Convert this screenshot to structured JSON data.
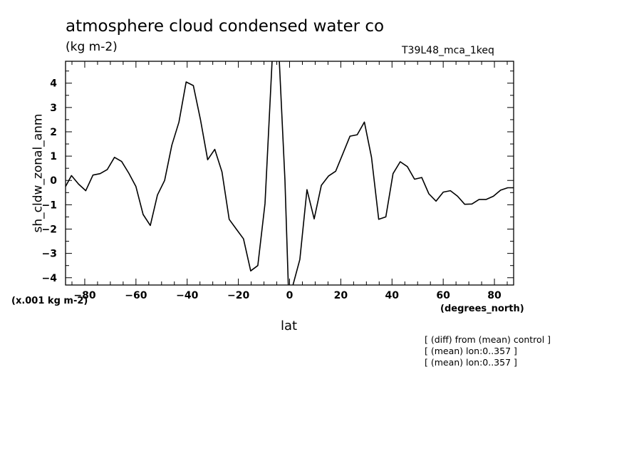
{
  "chart_data": {
    "type": "line",
    "title": "atmosphere cloud condensed water co",
    "units": "(kg m-2)",
    "run_id": "T39L48_mca_1keq",
    "xlabel": "lat",
    "x_units": "(degrees_north)",
    "ylabel": "sh_cldw_zonal_anm",
    "y_scale_note": "(x.001 kg m-2)",
    "xlim": [
      -87.5,
      87.5
    ],
    "ylim": [
      -4.3,
      4.9
    ],
    "x_ticks": [
      -80,
      -60,
      -40,
      -20,
      0,
      20,
      40,
      60,
      80
    ],
    "y_ticks": [
      -4,
      -3,
      -2,
      -1,
      0,
      1,
      2,
      3,
      4
    ],
    "grid": false,
    "series": [
      {
        "name": "sh_cldw_zonal_anm",
        "x": [
          -87.5,
          -85.2,
          -82.4,
          -79.6,
          -76.8,
          -74.0,
          -71.2,
          -68.4,
          -65.6,
          -62.8,
          -60.0,
          -57.2,
          -54.4,
          -51.6,
          -48.8,
          -46.0,
          -43.2,
          -40.4,
          -37.6,
          -34.8,
          -32.0,
          -29.2,
          -26.4,
          -23.6,
          -20.8,
          -18.0,
          -15.2,
          -12.4,
          -9.6,
          -6.8,
          -4.0,
          -1.8,
          -0.5,
          1.2,
          4.0,
          6.8,
          9.6,
          12.4,
          15.2,
          18.0,
          20.8,
          23.6,
          26.4,
          29.2,
          32.0,
          34.8,
          37.6,
          40.4,
          43.2,
          46.0,
          48.8,
          51.6,
          54.4,
          57.2,
          60.0,
          62.8,
          65.6,
          68.4,
          71.2,
          74.0,
          76.8,
          79.6,
          82.4,
          85.2,
          87.5
        ],
        "values": [
          -0.25,
          0.2,
          -0.15,
          -0.42,
          0.22,
          0.28,
          0.45,
          0.95,
          0.78,
          0.3,
          -0.25,
          -1.4,
          -1.85,
          -0.6,
          0.0,
          1.45,
          2.4,
          4.05,
          3.9,
          2.5,
          0.85,
          1.28,
          0.35,
          -1.6,
          -2.0,
          -2.4,
          -3.72,
          -3.5,
          -0.95,
          5.0,
          4.9,
          0.0,
          -4.3,
          -4.35,
          -3.25,
          -0.38,
          -1.58,
          -0.2,
          0.18,
          0.38,
          1.1,
          1.82,
          1.88,
          2.4,
          0.95,
          -1.6,
          -1.5,
          0.28,
          0.77,
          0.57,
          0.05,
          0.12,
          -0.55,
          -0.85,
          -0.48,
          -0.42,
          -0.65,
          -0.98,
          -0.97,
          -0.78,
          -0.78,
          -0.65,
          -0.4,
          -0.3,
          -0.3
        ]
      }
    ]
  },
  "notes": [
    "[ (diff) from (mean) control ]",
    "[ (mean) lon:0..357 ]",
    "[ (mean) lon:0..357 ]"
  ]
}
